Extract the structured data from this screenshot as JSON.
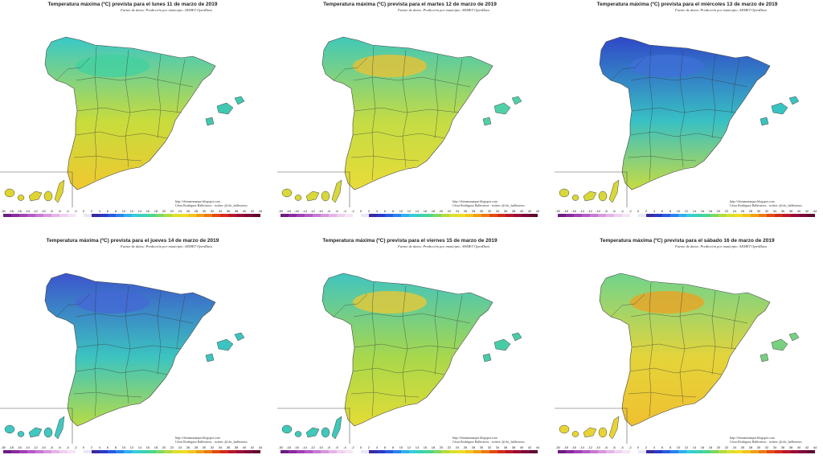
{
  "source_note": "Fuente de datos: Predicción por municipio. AEMET OpenData",
  "credit_blog": "http://chimammaque.blogspot.com",
  "credit_author": "César Rodríguez Ballesteros · twitter: @cbc_ballesteros",
  "scale_labels": [
    "-30",
    "-18",
    "-16",
    "-14",
    "-12",
    "-10",
    "-8",
    "-6",
    "-4",
    "-2",
    "0",
    "2",
    "4",
    "6",
    "8",
    "10",
    "12",
    "14",
    "16",
    "18",
    "20",
    "22",
    "24",
    "26",
    "28",
    "30",
    "32",
    "34",
    "36",
    "38",
    "40",
    "42",
    "44"
  ],
  "scale_colors": [
    "#6d1c82",
    "#8a2aa0",
    "#a040b4",
    "#b45ac6",
    "#c678d2",
    "#d896de",
    "#e6b4e8",
    "#f0d0f0",
    "#f6e4f6",
    "#ffffff",
    "#e8e8f8",
    "#3a2aa0",
    "#2a3ac8",
    "#2a5ae0",
    "#2a82ec",
    "#30aef0",
    "#36ccd6",
    "#3ad2b4",
    "#4ad68e",
    "#7cd864",
    "#b2dc3c",
    "#dae02c",
    "#f0dc24",
    "#f2c41e",
    "#f0a016",
    "#ec7a10",
    "#e44a10",
    "#d42a18",
    "#b8162a",
    "#9a0c36",
    "#7e0838",
    "#620830"
  ],
  "maps": [
    {
      "title": "Temperatura máxima (ºC) prevista para el lunes 11 de marzo de 2019",
      "palette": {
        "north": "#38c8c8",
        "center": "#c8dc3c",
        "south": "#f0c830",
        "accent": "#40d0a0",
        "islands": "#e0d430",
        "balearics": "#40c8b0"
      }
    },
    {
      "title": "Temperatura máxima (ºC) prevista para el martes 12 de marzo de 2019",
      "palette": {
        "north": "#40c8b8",
        "center": "#c4dc44",
        "south": "#e8dc38",
        "accent": "#f0c030",
        "islands": "#d8d83a",
        "balearics": "#50d0a8"
      }
    },
    {
      "title": "Temperatura máxima (ºC) prevista para el miércoles 13 de marzo de 2019",
      "palette": {
        "north": "#3048c8",
        "center": "#38c0c4",
        "south": "#c8dc40",
        "accent": "#4070d8",
        "islands": "#d8d83a",
        "balearics": "#38c4c0"
      }
    },
    {
      "title": "Temperatura máxima (ºC) prevista para el jueves 14 de marzo de 2019",
      "palette": {
        "north": "#3c54cc",
        "center": "#3cc4c0",
        "south": "#b8dc44",
        "accent": "#4468d4",
        "islands": "#40c8c0",
        "balearics": "#3cc4c0"
      }
    },
    {
      "title": "Temperatura máxima (ºC) prevista para el viernes 15 de marzo de 2019",
      "palette": {
        "north": "#40c4c0",
        "center": "#a8d84c",
        "south": "#e4dc34",
        "accent": "#f0c830",
        "islands": "#40c8b8",
        "balearics": "#48cca8"
      }
    },
    {
      "title": "Temperatura máxima (ºC) prevista para el sábado 16 de marzo de 2019",
      "palette": {
        "north": "#70d48c",
        "center": "#e4d43a",
        "south": "#f0c030",
        "accent": "#f0a020",
        "islands": "#e8d434",
        "balearics": "#78d080"
      }
    }
  ]
}
